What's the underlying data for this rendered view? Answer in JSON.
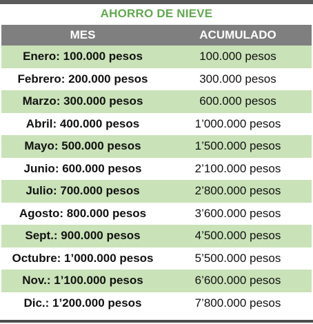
{
  "title": "AHORRO DE NIEVE",
  "columns": {
    "mes": "MES",
    "acumulado": "ACUMULADO"
  },
  "colors": {
    "title_green": "#62a84f",
    "header_gray": "#7f7f7f",
    "row_green": "#c9e2b8"
  },
  "rows": [
    {
      "mes": "Enero: 100.000 pesos",
      "acumulado": "100.000 pesos"
    },
    {
      "mes": "Febrero: 200.000 pesos",
      "acumulado": "300.000 pesos"
    },
    {
      "mes": "Marzo: 300.000 pesos",
      "acumulado": "600.000 pesos"
    },
    {
      "mes": "Abril: 400.000 pesos",
      "acumulado": "1’000.000 pesos"
    },
    {
      "mes": "Mayo: 500.000 pesos",
      "acumulado": "1’500.000 pesos"
    },
    {
      "mes": "Junio: 600.000 pesos",
      "acumulado": "2’100.000 pesos"
    },
    {
      "mes": "Julio: 700.000 pesos",
      "acumulado": "2’800.000 pesos"
    },
    {
      "mes": "Agosto: 800.000 pesos",
      "acumulado": "3’600.000 pesos"
    },
    {
      "mes": "Sept.: 900.000 pesos",
      "acumulado": "4’500.000 pesos"
    },
    {
      "mes": "Octubre: 1’000.000 pesos",
      "acumulado": "5’500.000 pesos"
    },
    {
      "mes": "Nov.: 1’100.000 pesos",
      "acumulado": "6’600.000 pesos"
    },
    {
      "mes": "Dic.: 1’200.000 pesos",
      "acumulado": "7’800.000 pesos"
    }
  ]
}
